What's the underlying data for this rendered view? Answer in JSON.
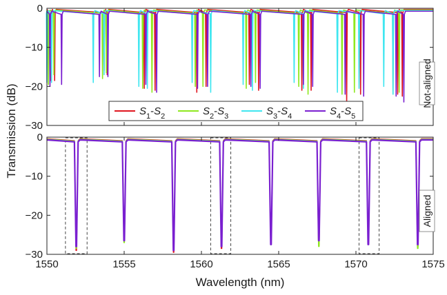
{
  "figure": {
    "ylabel": "Transmission (dB)",
    "xlabel": "Wavelength (nm)"
  },
  "colors": {
    "s12": "#e0141e",
    "s23": "#8ee81e",
    "s34": "#3fe6f0",
    "s45": "#7a1fd0",
    "axis": "#222222",
    "box": "#444444"
  },
  "chart_data": [
    {
      "type": "line",
      "panel": "top",
      "tag": "Not-aligned",
      "xlim": [
        1550,
        1575
      ],
      "ylim": [
        -30,
        0
      ],
      "yticks": [
        0,
        -10,
        -20,
        -30
      ],
      "xticks": [
        1550,
        1555,
        1560,
        1565,
        1570,
        1575
      ],
      "xticks_shown": false,
      "legend": {
        "placement": "bottom-center",
        "entries": [
          {
            "key": "s12",
            "sub": [
              "1",
              "2"
            ]
          },
          {
            "key": "s23",
            "sub": [
              "2",
              "3"
            ]
          },
          {
            "key": "s34",
            "sub": [
              "3",
              "4"
            ]
          },
          {
            "key": "s45",
            "sub": [
              "4",
              "5"
            ]
          }
        ]
      },
      "series": [
        {
          "key": "s12",
          "dips": [
            [
              1550.25,
              -18.5
            ],
            [
              1550.5,
              -18.5
            ],
            [
              1553.7,
              -16.0
            ],
            [
              1553.9,
              -17.0
            ],
            [
              1556.3,
              -20.5
            ],
            [
              1557.0,
              -21.0
            ],
            [
              1559.7,
              -21.5
            ],
            [
              1560.3,
              -20.0
            ],
            [
              1563.1,
              -19.5
            ],
            [
              1563.7,
              -21.0
            ],
            [
              1566.5,
              -21.0
            ],
            [
              1567.1,
              -21.0
            ],
            [
              1569.4,
              -24.0
            ],
            [
              1570.3,
              -22.0
            ],
            [
              1572.7,
              -22.0
            ],
            [
              1573.0,
              -22.5
            ]
          ]
        },
        {
          "key": "s23",
          "dips": [
            [
              1550.1,
              -19.5
            ],
            [
              1550.45,
              -17.0
            ],
            [
              1553.6,
              -18.0
            ],
            [
              1553.85,
              -16.5
            ],
            [
              1556.2,
              -20.5
            ],
            [
              1556.8,
              -21.5
            ],
            [
              1559.6,
              -20.0
            ],
            [
              1560.1,
              -20.0
            ],
            [
              1562.9,
              -20.5
            ],
            [
              1563.5,
              -19.0
            ],
            [
              1566.3,
              -20.0
            ],
            [
              1566.9,
              -22.0
            ],
            [
              1569.1,
              -22.0
            ],
            [
              1569.9,
              -21.5
            ],
            [
              1572.4,
              -22.0
            ],
            [
              1572.8,
              -21.5
            ]
          ]
        },
        {
          "key": "s34",
          "dips": [
            [
              1550.0,
              -19.0
            ],
            [
              1550.3,
              -19.0
            ],
            [
              1553.0,
              -19.0
            ],
            [
              1553.7,
              -17.0
            ],
            [
              1555.95,
              -20.0
            ],
            [
              1556.5,
              -20.5
            ],
            [
              1559.4,
              -19.0
            ],
            [
              1560.6,
              -21.5
            ],
            [
              1562.7,
              -19.5
            ],
            [
              1563.3,
              -21.0
            ],
            [
              1566.0,
              -19.0
            ],
            [
              1566.6,
              -20.5
            ],
            [
              1568.8,
              -21.5
            ],
            [
              1570.2,
              -20.5
            ],
            [
              1571.8,
              -20.0
            ],
            [
              1572.4,
              -22.0
            ]
          ]
        },
        {
          "key": "s45",
          "dips": [
            [
              1550.2,
              -20.0
            ],
            [
              1550.95,
              -19.5
            ],
            [
              1553.4,
              -17.5
            ],
            [
              1553.95,
              -17.5
            ],
            [
              1556.4,
              -19.5
            ],
            [
              1557.1,
              -21.5
            ],
            [
              1559.75,
              -20.5
            ],
            [
              1560.4,
              -20.0
            ],
            [
              1563.2,
              -20.0
            ],
            [
              1563.8,
              -20.5
            ],
            [
              1566.6,
              -19.5
            ],
            [
              1567.2,
              -20.0
            ],
            [
              1569.3,
              -22.0
            ],
            [
              1570.5,
              -22.5
            ],
            [
              1572.6,
              -22.5
            ],
            [
              1573.1,
              -24.0
            ]
          ]
        }
      ]
    },
    {
      "type": "line",
      "panel": "bottom",
      "tag": "Aligned",
      "xlim": [
        1550,
        1575
      ],
      "ylim": [
        -30,
        0
      ],
      "yticks": [
        0,
        -10,
        -20,
        -30
      ],
      "xticks": [
        1550,
        1555,
        1560,
        1565,
        1570,
        1575
      ],
      "xticks_shown": true,
      "dips": [
        1551.9,
        1555.0,
        1558.2,
        1561.3,
        1564.5,
        1567.6,
        1570.8,
        1574.0
      ],
      "depths": {
        "s12": [
          -29.0,
          -26.5,
          -29.5,
          -28.5,
          -27.0,
          -27.5,
          -26.5,
          -28.0
        ],
        "s23": [
          -28.5,
          -27.0,
          -28.0,
          -28.0,
          -26.5,
          -28.0,
          -26.0,
          -28.5
        ],
        "s34": [
          -27.5,
          -26.0,
          -28.5,
          -27.5,
          -26.0,
          -25.5,
          -25.5,
          -27.5
        ],
        "s45": [
          -28.0,
          -26.5,
          -29.0,
          -28.0,
          -27.5,
          -26.5,
          -27.5,
          -27.5
        ]
      },
      "highlight_ranges": [
        [
          1551.2,
          1552.6
        ],
        [
          1560.6,
          1561.9
        ],
        [
          1570.2,
          1571.5
        ]
      ]
    }
  ]
}
